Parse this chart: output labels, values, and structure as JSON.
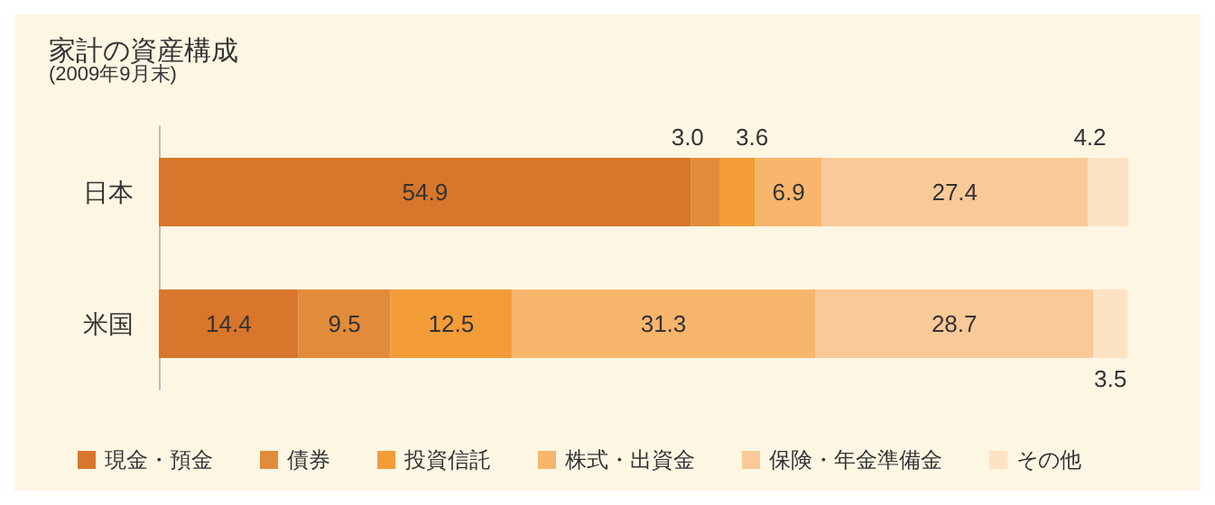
{
  "chart_data": {
    "type": "bar",
    "title": "家計の資産構成",
    "subtitle": "(2009年9月末)",
    "orientation": "horizontal",
    "stacked": true,
    "legend": "bottom",
    "categories": [
      "日本",
      "米国"
    ],
    "series": [
      {
        "name": "現金・預金",
        "color": "#d8762b",
        "values": [
          54.9,
          14.4
        ],
        "value_labels": [
          "54.9",
          "14.4"
        ]
      },
      {
        "name": "債券",
        "color": "#e28b3b",
        "values": [
          3.0,
          9.5
        ],
        "value_labels": [
          "3.0",
          "9.5"
        ]
      },
      {
        "name": "投資信託",
        "color": "#f39c38",
        "values": [
          3.6,
          12.5
        ],
        "value_labels": [
          "3.6",
          "12.5"
        ]
      },
      {
        "name": "株式・出資金",
        "color": "#f8b56c",
        "values": [
          6.9,
          31.3
        ],
        "value_labels": [
          "6.9",
          "31.3"
        ]
      },
      {
        "name": "保険・年金準備金",
        "color": "#fac998",
        "values": [
          27.4,
          28.7
        ],
        "value_labels": [
          "27.4",
          "28.7"
        ]
      },
      {
        "name": "その他",
        "color": "#fde2c3",
        "values": [
          4.2,
          3.5
        ],
        "value_labels": [
          "4.2",
          "3.5"
        ]
      }
    ]
  }
}
